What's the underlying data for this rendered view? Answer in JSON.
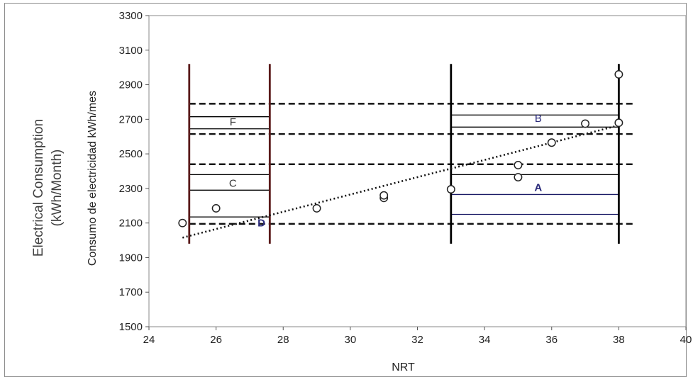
{
  "outer_ylabel": {
    "line1": "Electrical Consumption",
    "line2": "(kWh/Month)"
  },
  "chart_data": {
    "type": "scatter",
    "title": "",
    "xlabel": "NRT",
    "ylabel": "Consumo de electricidad kWh/mes",
    "xlim": [
      24,
      40
    ],
    "ylim": [
      1500,
      3300
    ],
    "xticks": [
      24,
      26,
      28,
      30,
      32,
      34,
      36,
      38,
      40
    ],
    "yticks": [
      1500,
      1700,
      1900,
      2100,
      2300,
      2500,
      2700,
      2900,
      3100,
      3300
    ],
    "grid": false,
    "legend": "none",
    "points": {
      "x": [
        25,
        26,
        29,
        31,
        31,
        33,
        35,
        35,
        36,
        37,
        38,
        38
      ],
      "y": [
        2100,
        2185,
        2185,
        2245,
        2260,
        2295,
        2365,
        2435,
        2565,
        2675,
        2680,
        2960
      ]
    },
    "trendline": {
      "style": "dotted",
      "from": [
        25,
        2015
      ],
      "to": [
        38,
        2665
      ]
    },
    "vertical_lines": [
      {
        "x": 25.2,
        "y": [
          1980,
          3020
        ],
        "color": "#5a1a1a"
      },
      {
        "x": 27.6,
        "y": [
          1980,
          3020
        ],
        "color": "#5a1a1a"
      },
      {
        "x": 33.0,
        "y": [
          1980,
          3020
        ],
        "color": "#000000"
      },
      {
        "x": 38.0,
        "y": [
          1980,
          3020
        ],
        "color": "#000000"
      }
    ],
    "dashed_hlines": [
      {
        "y": 2790,
        "x": [
          25.2,
          38.5
        ]
      },
      {
        "y": 2615,
        "x": [
          25.2,
          38.5
        ]
      },
      {
        "y": 2440,
        "x": [
          25.2,
          38.5
        ]
      },
      {
        "y": 2095,
        "x": [
          25.2,
          38.5
        ]
      }
    ],
    "solid_hlines": [
      {
        "y": 2715,
        "x": [
          25.2,
          27.6
        ],
        "color": "#000000"
      },
      {
        "y": 2645,
        "x": [
          25.2,
          27.6
        ],
        "color": "#000000"
      },
      {
        "y": 2380,
        "x": [
          25.2,
          27.6
        ],
        "color": "#000000"
      },
      {
        "y": 2290,
        "x": [
          25.2,
          27.6
        ],
        "color": "#000000"
      },
      {
        "y": 2135,
        "x": [
          25.2,
          27.6
        ],
        "color": "#000000"
      },
      {
        "y": 2725,
        "x": [
          33.0,
          38.0
        ],
        "color": "#000000"
      },
      {
        "y": 2655,
        "x": [
          33.0,
          38.0
        ],
        "color": "#000000"
      },
      {
        "y": 2380,
        "x": [
          33.0,
          38.0
        ],
        "color": "#000000"
      },
      {
        "y": 2265,
        "x": [
          33.0,
          38.0
        ],
        "color": "#1a1a66"
      },
      {
        "y": 2150,
        "x": [
          33.0,
          38.0
        ],
        "color": "#1a1a66"
      }
    ],
    "annotations": [
      {
        "text": "F",
        "x": 26.5,
        "y": 2665,
        "color": "#333333"
      },
      {
        "text": "C",
        "x": 26.5,
        "y": 2310,
        "color": "#333333"
      },
      {
        "text": "D",
        "x": 27.35,
        "y": 2080,
        "color": "#2a2a7a"
      },
      {
        "text": "B",
        "x": 35.6,
        "y": 2685,
        "color": "#2a2a7a"
      },
      {
        "text": "A",
        "x": 35.6,
        "y": 2285,
        "color": "#2a2a7a"
      }
    ]
  }
}
